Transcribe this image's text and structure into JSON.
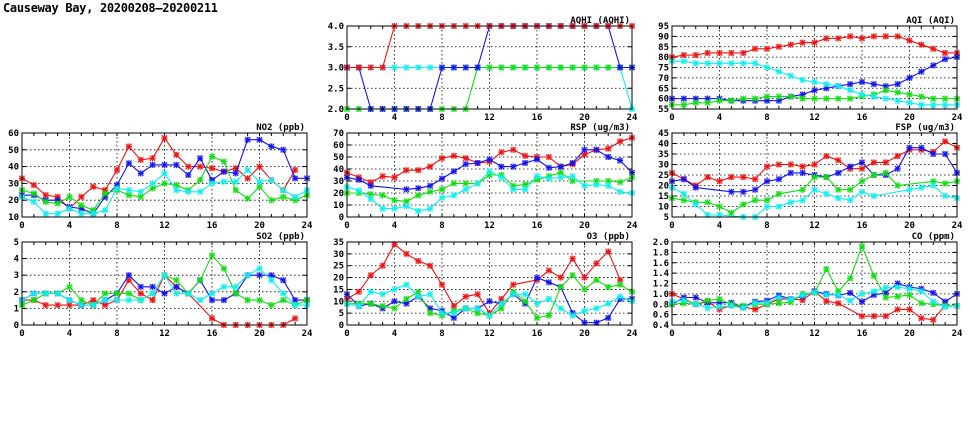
{
  "title": "Causeway Bay, 20200208—20200211",
  "colors": {
    "red": "#ee1111",
    "blue": "#1111ee",
    "green": "#11dd11",
    "cyan": "#11eeee"
  },
  "chart_data": [
    {
      "id": "no2",
      "type": "line",
      "title": "NO2 (ppb)",
      "ylim": [
        10,
        60
      ],
      "yticks": [
        "10",
        "20",
        "30",
        "40",
        "50",
        "60"
      ],
      "xlim": [
        0,
        24
      ],
      "xticks": [
        "0",
        "4",
        "8",
        "12",
        "16",
        "20",
        "24"
      ],
      "grid": true,
      "series": [
        {
          "name": "red",
          "values": [
            33,
            29,
            23,
            22,
            15,
            22,
            28,
            26,
            38,
            52,
            44,
            45,
            57,
            47,
            40,
            40,
            39,
            37,
            39,
            33,
            40,
            32,
            26,
            38,
            null
          ]
        },
        {
          "name": "blue",
          "values": [
            23,
            23,
            20,
            20,
            16,
            15,
            12,
            22,
            29,
            42,
            36,
            41,
            41,
            41,
            35,
            45,
            32,
            37,
            36,
            56,
            56,
            52,
            50,
            33,
            33
          ]
        },
        {
          "name": "green",
          "values": [
            26,
            24,
            19,
            18,
            22,
            17,
            14,
            24,
            26,
            23,
            22,
            27,
            30,
            29,
            26,
            32,
            46,
            43,
            26,
            21,
            28,
            20,
            22,
            20,
            23
          ]
        },
        {
          "name": "cyan",
          "values": [
            22,
            19,
            12,
            12,
            15,
            12,
            12,
            14,
            27,
            26,
            25,
            30,
            36,
            26,
            25,
            25,
            30,
            31,
            31,
            38,
            31,
            32,
            26,
            22,
            26
          ]
        }
      ]
    },
    {
      "id": "so2",
      "type": "line",
      "title": "SO2 (ppb)",
      "ylim": [
        0,
        5
      ],
      "yticks": [
        "0",
        "1",
        "2",
        "3",
        "4",
        "5"
      ],
      "xlim": [
        0,
        24
      ],
      "xticks": [
        "0",
        "4",
        "8",
        "12",
        "16",
        "20",
        "24"
      ],
      "grid": true,
      "series": [
        {
          "name": "red",
          "values": [
            1.5,
            1.5,
            1.2,
            1.2,
            1.2,
            1.2,
            1.5,
            1.2,
            1.5,
            2.7,
            1.9,
            1.5,
            3.0,
            2.3,
            1.9,
            null,
            0.4,
            0,
            0,
            0,
            0,
            0,
            0,
            0.4,
            null
          ]
        },
        {
          "name": "blue",
          "values": [
            1.5,
            1.9,
            1.9,
            1.9,
            1.5,
            1.2,
            1.2,
            1.5,
            1.9,
            3.0,
            2.3,
            2.3,
            1.9,
            2.3,
            1.9,
            2.7,
            1.5,
            1.5,
            1.9,
            3.0,
            3.0,
            3.0,
            2.7,
            1.5,
            1.5
          ]
        },
        {
          "name": "green",
          "values": [
            1.2,
            1.5,
            1.9,
            1.9,
            2.3,
            1.5,
            1.2,
            1.9,
            1.9,
            1.9,
            1.5,
            1.9,
            3.0,
            2.7,
            1.9,
            2.7,
            4.2,
            3.4,
            1.9,
            1.5,
            1.5,
            1.2,
            1.5,
            1.2,
            1.5
          ]
        },
        {
          "name": "cyan",
          "values": [
            1.5,
            1.9,
            1.9,
            1.9,
            1.5,
            1.2,
            1.2,
            1.5,
            1.5,
            1.5,
            1.5,
            1.9,
            3.0,
            1.9,
            1.9,
            1.5,
            1.9,
            2.3,
            2.3,
            3.0,
            3.4,
            2.7,
            1.9,
            1.2,
            1.2
          ]
        }
      ]
    },
    {
      "id": "aqhi",
      "type": "line",
      "title": "AQHI (AQHI)",
      "ylim": [
        2,
        4
      ],
      "yticks": [
        "2.0",
        "2.5",
        "3.0",
        "3.5",
        "4.0"
      ],
      "xlim": [
        0,
        24
      ],
      "xticks": [
        "0",
        "4",
        "8",
        "12",
        "16",
        "20",
        "24"
      ],
      "grid": true,
      "series": [
        {
          "name": "cyan",
          "values": [
            3,
            3,
            3,
            3,
            3,
            3,
            3,
            3,
            3,
            3,
            3,
            3,
            3,
            3,
            3,
            3,
            3,
            3,
            3,
            3,
            3,
            3,
            3,
            3,
            2
          ]
        },
        {
          "name": "green",
          "values": [
            2,
            2,
            2,
            2,
            2,
            2,
            2,
            2,
            2,
            2,
            2,
            3,
            3,
            3,
            3,
            3,
            3,
            3,
            3,
            3,
            3,
            3,
            3,
            3,
            3
          ]
        },
        {
          "name": "blue",
          "values": [
            3,
            3,
            2,
            2,
            2,
            2,
            2,
            2,
            3,
            3,
            3,
            3,
            4,
            4,
            4,
            4,
            4,
            4,
            4,
            4,
            4,
            4,
            4,
            3,
            3
          ]
        },
        {
          "name": "red",
          "values": [
            3,
            3,
            3,
            3,
            4,
            4,
            4,
            4,
            4,
            4,
            4,
            4,
            4,
            4,
            4,
            4,
            4,
            4,
            4,
            4,
            4,
            4,
            4,
            4,
            4
          ]
        }
      ]
    },
    {
      "id": "rsp",
      "type": "line",
      "title": "RSP (ug/m3)",
      "ylim": [
        0,
        70
      ],
      "yticks": [
        "0",
        "10",
        "20",
        "30",
        "40",
        "50",
        "60",
        "70"
      ],
      "xlim": [
        0,
        24
      ],
      "xticks": [
        "0",
        "4",
        "8",
        "12",
        "16",
        "20",
        "24"
      ],
      "grid": true,
      "series": [
        {
          "name": "red",
          "values": [
            37,
            33,
            29,
            34,
            33,
            39,
            39,
            42,
            49,
            51,
            49,
            45,
            46,
            54,
            56,
            51,
            50,
            50,
            42,
            44,
            52,
            56,
            57,
            63,
            66
          ]
        },
        {
          "name": "blue",
          "values": [
            33,
            31,
            26,
            null,
            null,
            23,
            24,
            26,
            32,
            38,
            44,
            45,
            48,
            42,
            42,
            45,
            48,
            41,
            42,
            45,
            56,
            56,
            50,
            47,
            37
          ]
        },
        {
          "name": "green",
          "values": [
            20,
            20,
            19,
            18,
            14,
            13,
            18,
            21,
            23,
            28,
            28,
            28,
            35,
            35,
            26,
            27,
            31,
            34,
            37,
            30,
            null,
            30,
            30,
            29,
            33
          ]
        },
        {
          "name": "cyan",
          "values": [
            25,
            22,
            15,
            7,
            7,
            9,
            5,
            7,
            16,
            18,
            23,
            28,
            38,
            33,
            23,
            23,
            34,
            32,
            33,
            34,
            26,
            27,
            26,
            21,
            20
          ]
        }
      ]
    },
    {
      "id": "o3",
      "type": "line",
      "title": "O3 (ppb)",
      "ylim": [
        0,
        35
      ],
      "yticks": [
        "0",
        "5",
        "10",
        "15",
        "20",
        "25",
        "30",
        "35"
      ],
      "xlim": [
        0,
        24
      ],
      "xticks": [
        "0",
        "4",
        "8",
        "12",
        "16",
        "20",
        "24"
      ],
      "grid": true,
      "series": [
        {
          "name": "red",
          "values": [
            11,
            14,
            21,
            25,
            34,
            30,
            27,
            25,
            17,
            8,
            12,
            13,
            5,
            11,
            17,
            null,
            19,
            23,
            20,
            28,
            20,
            26,
            31,
            19,
            null
          ]
        },
        {
          "name": "blue",
          "values": [
            13,
            8,
            9,
            7,
            10,
            9,
            12,
            7,
            6,
            3,
            7,
            7,
            10,
            9,
            13,
            9,
            20,
            18,
            16,
            5,
            1,
            1,
            3,
            11,
            11
          ]
        },
        {
          "name": "green",
          "values": [
            9,
            9,
            9,
            8,
            7,
            11,
            14,
            5,
            4,
            6,
            7,
            5,
            4,
            7,
            14,
            10,
            3,
            4,
            16,
            21,
            15,
            19,
            16,
            17,
            14
          ]
        },
        {
          "name": "cyan",
          "values": [
            9,
            8,
            14,
            13,
            15,
            17,
            12,
            13,
            5,
            5,
            7,
            7,
            4,
            9,
            13,
            13,
            9,
            11,
            7,
            4,
            6,
            7,
            9,
            12,
            10
          ]
        }
      ]
    },
    {
      "id": "aqi",
      "type": "line",
      "title": "AQI (AQI)",
      "ylim": [
        55,
        95
      ],
      "yticks": [
        "55",
        "60",
        "65",
        "70",
        "75",
        "80",
        "85",
        "90",
        "95"
      ],
      "xlim": [
        0,
        24
      ],
      "xticks": [
        "0",
        "4",
        "8",
        "12",
        "16",
        "20",
        "24"
      ],
      "grid": true,
      "series": [
        {
          "name": "red",
          "values": [
            80,
            81,
            81,
            82,
            82,
            82,
            82,
            84,
            84,
            85,
            86,
            87,
            87,
            89,
            89,
            90,
            89,
            90,
            90,
            90,
            88,
            86,
            84,
            82,
            82
          ]
        },
        {
          "name": "blue",
          "values": [
            60,
            60,
            60,
            60,
            60,
            59,
            59,
            59,
            59,
            59,
            61,
            62,
            64,
            65,
            66,
            67,
            68,
            67,
            66,
            67,
            70,
            73,
            76,
            79,
            80
          ]
        },
        {
          "name": "green",
          "values": [
            57,
            57,
            58,
            58,
            59,
            59,
            60,
            60,
            61,
            61,
            61,
            60,
            60,
            60,
            60,
            60,
            61,
            62,
            64,
            63,
            62,
            61,
            60,
            60,
            60
          ]
        },
        {
          "name": "cyan",
          "values": [
            78,
            78,
            77,
            77,
            77,
            77,
            77,
            77,
            75,
            73,
            71,
            69,
            68,
            67,
            66,
            64,
            62,
            61,
            60,
            59,
            58,
            57,
            57,
            57,
            57
          ]
        }
      ]
    },
    {
      "id": "fsp",
      "type": "line",
      "title": "FSP (ug/m3)",
      "ylim": [
        5,
        45
      ],
      "yticks": [
        "5",
        "10",
        "15",
        "20",
        "25",
        "30",
        "35",
        "40",
        "45"
      ],
      "xlim": [
        0,
        24
      ],
      "xticks": [
        "0",
        "4",
        "8",
        "12",
        "16",
        "20",
        "24"
      ],
      "grid": true,
      "series": [
        {
          "name": "red",
          "values": [
            26,
            23,
            20,
            24,
            22,
            24,
            24,
            23,
            29,
            30,
            30,
            29,
            30,
            34,
            32,
            28,
            28,
            31,
            31,
            34,
            37,
            37,
            36,
            41,
            38
          ]
        },
        {
          "name": "blue",
          "values": [
            22,
            23,
            19,
            null,
            null,
            17,
            17,
            18,
            22,
            23,
            26,
            26,
            25,
            24,
            26,
            29,
            31,
            25,
            25,
            28,
            38,
            38,
            35,
            35,
            26
          ]
        },
        {
          "name": "green",
          "values": [
            14,
            13,
            12,
            12,
            10,
            7,
            11,
            13,
            13,
            16,
            null,
            18,
            24,
            24,
            18,
            18,
            22,
            25,
            26,
            20,
            null,
            null,
            22,
            21,
            22
          ]
        },
        {
          "name": "cyan",
          "values": [
            19,
            16,
            11,
            6,
            6,
            null,
            5,
            5,
            10,
            10,
            12,
            13,
            18,
            16,
            14,
            13,
            17,
            15,
            null,
            null,
            18,
            19,
            20,
            15,
            14
          ]
        }
      ]
    },
    {
      "id": "co",
      "type": "line",
      "title": "CO (ppm)",
      "ylim": [
        0.4,
        2.0
      ],
      "yticks": [
        "0.4",
        "0.6",
        "0.8",
        "1.0",
        "1.2",
        "1.4",
        "1.6",
        "1.8",
        "2.0"
      ],
      "xlim": [
        0,
        24
      ],
      "xticks": [
        "0",
        "4",
        "8",
        "12",
        "16",
        "20",
        "24"
      ],
      "grid": true,
      "series": [
        {
          "name": "red",
          "values": [
            1.0,
            0.9,
            0.8,
            0.85,
            0.7,
            0.78,
            0.75,
            0.7,
            0.8,
            0.9,
            0.9,
            0.88,
            1.05,
            0.86,
            0.82,
            null,
            0.57,
            0.57,
            0.57,
            0.7,
            0.7,
            0.53,
            0.5,
            0.78,
            null
          ]
        },
        {
          "name": "blue",
          "values": [
            0.8,
            0.93,
            0.93,
            0.83,
            0.83,
            0.83,
            0.75,
            0.85,
            0.87,
            0.97,
            0.9,
            0.95,
            1.05,
            1.0,
            0.97,
            1.02,
            0.85,
            0.98,
            1.02,
            1.2,
            1.13,
            1.1,
            1.02,
            0.85,
            1.0
          ]
        },
        {
          "name": "green",
          "values": [
            0.8,
            0.82,
            0.8,
            0.87,
            0.9,
            0.8,
            0.77,
            0.8,
            0.8,
            0.82,
            0.84,
            1.0,
            1.02,
            1.48,
            1.05,
            1.3,
            1.92,
            1.35,
            0.93,
            0.95,
            0.98,
            0.82,
            0.8,
            0.77,
            0.77
          ]
        },
        {
          "name": "cyan",
          "values": [
            0.85,
            0.88,
            0.8,
            0.73,
            0.75,
            0.77,
            0.73,
            0.83,
            0.83,
            0.93,
            0.9,
            0.97,
            1.03,
            0.98,
            0.98,
            0.87,
            1.0,
            1.05,
            1.12,
            1.13,
            1.1,
            1.05,
            0.85,
            0.75,
            0.77
          ]
        }
      ]
    }
  ]
}
